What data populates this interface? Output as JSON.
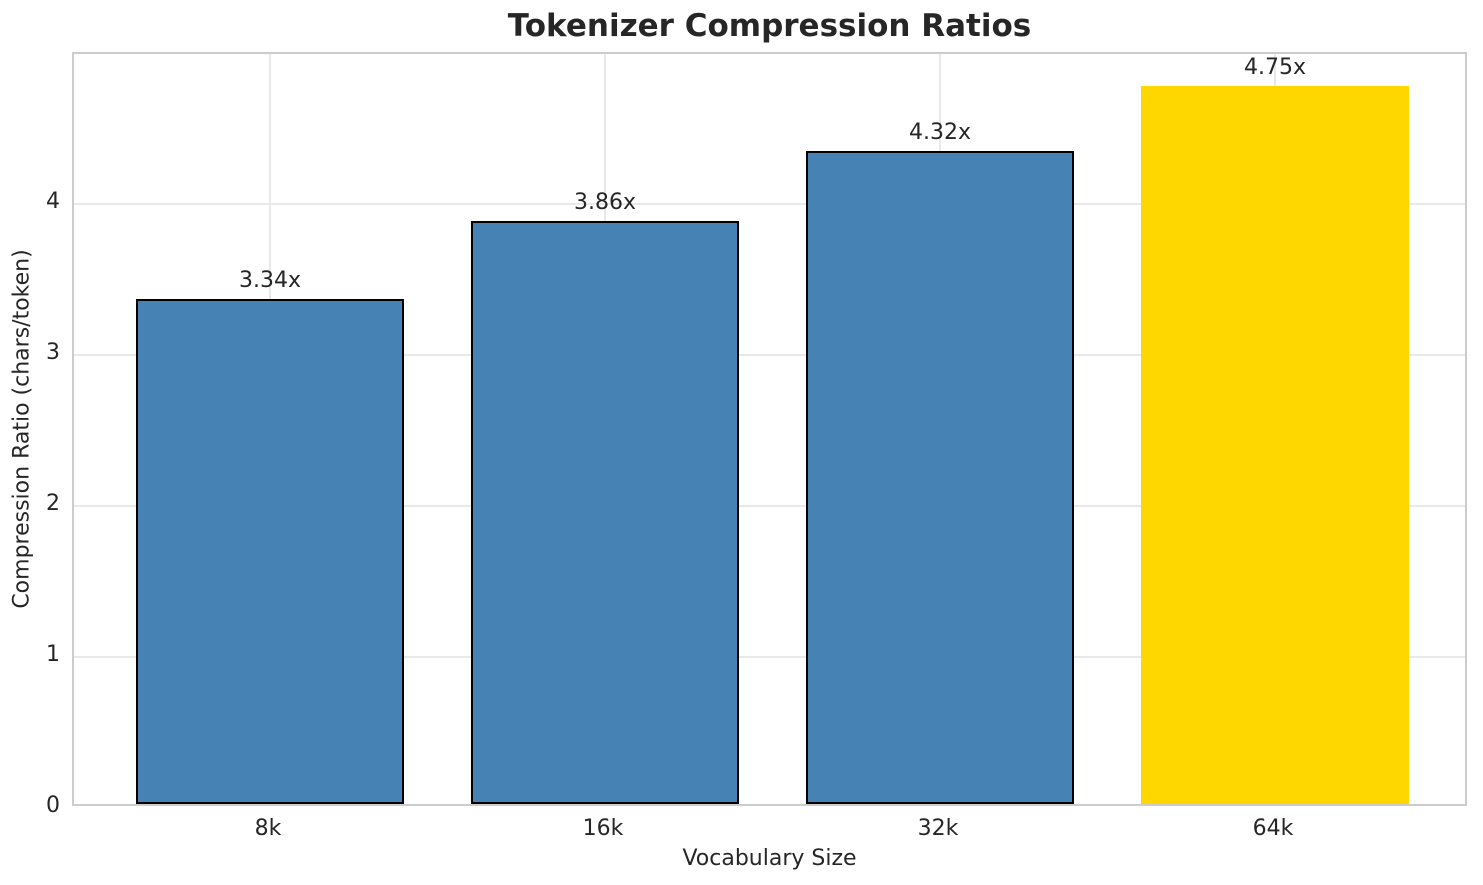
{
  "chart_data": {
    "type": "bar",
    "title": "Tokenizer Compression Ratios",
    "xlabel": "Vocabulary Size",
    "ylabel": "Compression Ratio (chars/token)",
    "categories": [
      "8k",
      "16k",
      "32k",
      "64k"
    ],
    "values": [
      3.34,
      3.86,
      4.32,
      4.75
    ],
    "bar_labels": [
      "3.34x",
      "3.86x",
      "4.32x",
      "4.75x"
    ],
    "bar_colors": [
      "#4682b4",
      "#4682b4",
      "#4682b4",
      "#ffd700"
    ],
    "bar_edge_colors": [
      "#000000",
      "#000000",
      "#000000",
      null
    ],
    "highlight_index": 3,
    "yticks": [
      0,
      1,
      2,
      3,
      4
    ],
    "ylim": [
      0,
      4.99
    ],
    "grid": true,
    "legend": "none",
    "colors": {
      "grid": "#e9e9e9",
      "spine": "#cccccc",
      "text": "#262626",
      "background": "#ffffff"
    }
  }
}
